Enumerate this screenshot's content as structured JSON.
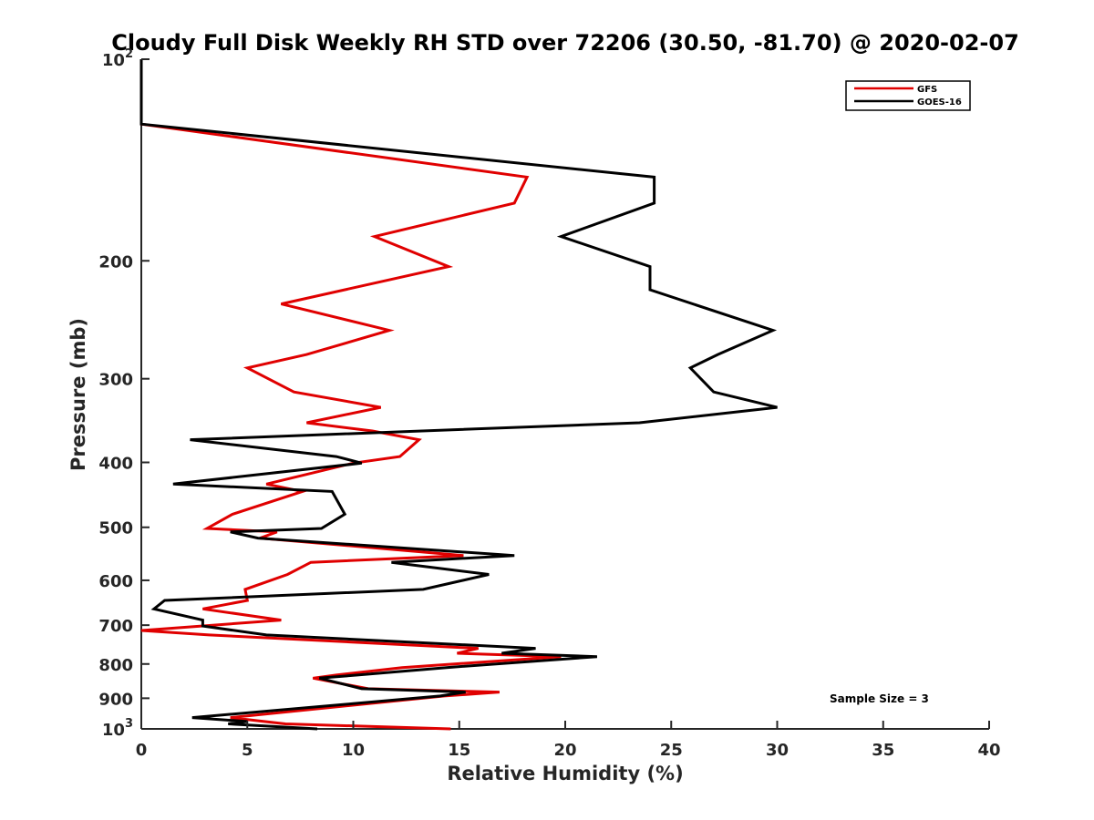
{
  "chart_data": {
    "type": "line",
    "title": "Cloudy Full Disk Weekly RH STD over 72206 (30.50, -81.70) @ 2020-02-07",
    "xlabel": "Relative Humidity (%)",
    "ylabel": "Pressure (mb)",
    "xlim": [
      0,
      40
    ],
    "ylim": [
      100,
      1000
    ],
    "yscale": "log",
    "y_reversed": true,
    "xticks": [
      0,
      5,
      10,
      15,
      20,
      25,
      30,
      35,
      40
    ],
    "xtick_labels": [
      "0",
      "5",
      "10",
      "15",
      "20",
      "25",
      "30",
      "35",
      "40"
    ],
    "yticks": [
      {
        "value": 100,
        "base": "10",
        "exp": "2"
      },
      {
        "value": 200,
        "label": "200"
      },
      {
        "value": 300,
        "label": "300"
      },
      {
        "value": 400,
        "label": "400"
      },
      {
        "value": 500,
        "label": "500"
      },
      {
        "value": 600,
        "label": "600"
      },
      {
        "value": 700,
        "label": "700"
      },
      {
        "value": 800,
        "label": "800"
      },
      {
        "value": 900,
        "label": "900"
      },
      {
        "value": 1000,
        "base": "10",
        "exp": "3"
      }
    ],
    "legend_position": "top-right",
    "annotation": "Sample Size = 3",
    "series": [
      {
        "name": "GFS",
        "color": "#e00000",
        "points": [
          [
            0,
            100
          ],
          [
            0,
            125
          ],
          [
            18.2,
            150
          ],
          [
            17.6,
            164
          ],
          [
            11.0,
            184
          ],
          [
            14.5,
            204
          ],
          [
            6.6,
            232
          ],
          [
            11.7,
            254
          ],
          [
            7.8,
            276
          ],
          [
            5.0,
            289
          ],
          [
            7.2,
            314
          ],
          [
            11.3,
            331
          ],
          [
            7.8,
            349
          ],
          [
            10.9,
            359
          ],
          [
            13.1,
            370
          ],
          [
            12.2,
            392
          ],
          [
            10.0,
            401
          ],
          [
            5.9,
            431
          ],
          [
            7.6,
            442
          ],
          [
            4.3,
            478
          ],
          [
            3.1,
            502
          ],
          [
            6.4,
            508
          ],
          [
            5.6,
            519
          ],
          [
            15.2,
            551
          ],
          [
            8.0,
            564
          ],
          [
            6.9,
            588
          ],
          [
            4.9,
            619
          ],
          [
            5.0,
            643
          ],
          [
            2.9,
            662
          ],
          [
            6.6,
            688
          ],
          [
            0,
            713
          ],
          [
            3.2,
            724
          ],
          [
            15.9,
            758
          ],
          [
            14.9,
            771
          ],
          [
            19.8,
            780
          ],
          [
            12.3,
            810
          ],
          [
            9.2,
            831
          ],
          [
            8.1,
            840
          ],
          [
            10.7,
            871
          ],
          [
            16.9,
            881
          ],
          [
            14.3,
            893
          ],
          [
            4.2,
            962
          ],
          [
            5.8,
            975
          ],
          [
            6.8,
            983
          ],
          [
            14.6,
            1000
          ]
        ]
      },
      {
        "name": "GOES-16",
        "color": "#000000",
        "points": [
          [
            0,
            100
          ],
          [
            0,
            125
          ],
          [
            24.2,
            150
          ],
          [
            24.2,
            164
          ],
          [
            19.8,
            184
          ],
          [
            24.0,
            204
          ],
          [
            24.0,
            221
          ],
          [
            29.8,
            254
          ],
          [
            27.2,
            276
          ],
          [
            25.9,
            289
          ],
          [
            27.0,
            314
          ],
          [
            30.0,
            331
          ],
          [
            23.5,
            349
          ],
          [
            2.3,
            370
          ],
          [
            9.2,
            392
          ],
          [
            10.4,
            401
          ],
          [
            1.5,
            431
          ],
          [
            9.0,
            442
          ],
          [
            9.6,
            478
          ],
          [
            8.5,
            502
          ],
          [
            4.2,
            508
          ],
          [
            5.5,
            519
          ],
          [
            17.6,
            551
          ],
          [
            11.8,
            564
          ],
          [
            16.4,
            588
          ],
          [
            13.3,
            619
          ],
          [
            1.1,
            643
          ],
          [
            0.6,
            662
          ],
          [
            2.9,
            688
          ],
          [
            2.9,
            702
          ],
          [
            5.9,
            724
          ],
          [
            18.6,
            758
          ],
          [
            17.0,
            771
          ],
          [
            21.5,
            780
          ],
          [
            14.4,
            810
          ],
          [
            10.2,
            831
          ],
          [
            8.4,
            840
          ],
          [
            10.4,
            871
          ],
          [
            15.3,
            881
          ],
          [
            14.1,
            893
          ],
          [
            10.0,
            917
          ],
          [
            2.4,
            962
          ],
          [
            5.0,
            975
          ],
          [
            4.1,
            983
          ],
          [
            8.3,
            1000
          ]
        ]
      }
    ]
  }
}
